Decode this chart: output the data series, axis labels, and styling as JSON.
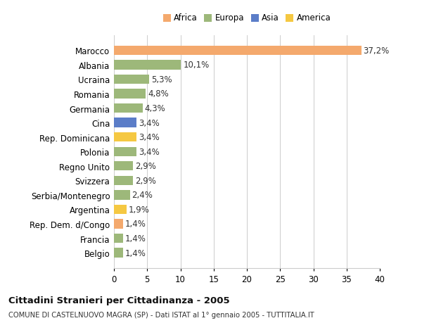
{
  "countries": [
    "Marocco",
    "Albania",
    "Ucraina",
    "Romania",
    "Germania",
    "Cina",
    "Rep. Dominicana",
    "Polonia",
    "Regno Unito",
    "Svizzera",
    "Serbia/Montenegro",
    "Argentina",
    "Rep. Dem. d/Congo",
    "Francia",
    "Belgio"
  ],
  "values": [
    37.2,
    10.1,
    5.3,
    4.8,
    4.3,
    3.4,
    3.4,
    3.4,
    2.9,
    2.9,
    2.4,
    1.9,
    1.4,
    1.4,
    1.4
  ],
  "labels": [
    "37,2%",
    "10,1%",
    "5,3%",
    "4,8%",
    "4,3%",
    "3,4%",
    "3,4%",
    "3,4%",
    "2,9%",
    "2,9%",
    "2,4%",
    "1,9%",
    "1,4%",
    "1,4%",
    "1,4%"
  ],
  "colors": [
    "#F4A96D",
    "#9DB87A",
    "#9DB87A",
    "#9DB87A",
    "#9DB87A",
    "#5B7DC8",
    "#F5C842",
    "#9DB87A",
    "#9DB87A",
    "#9DB87A",
    "#9DB87A",
    "#F5C842",
    "#F4A96D",
    "#9DB87A",
    "#9DB87A"
  ],
  "legend_labels": [
    "Africa",
    "Europa",
    "Asia",
    "America"
  ],
  "legend_colors": [
    "#F4A96D",
    "#9DB87A",
    "#5B7DC8",
    "#F5C842"
  ],
  "xlim": [
    0,
    40
  ],
  "xticks": [
    0,
    5,
    10,
    15,
    20,
    25,
    30,
    35,
    40
  ],
  "title_main": "Cittadini Stranieri per Cittadinanza - 2005",
  "title_sub": "COMUNE DI CASTELNUOVO MAGRA (SP) - Dati ISTAT al 1° gennaio 2005 - TUTTITALIA.IT",
  "background_color": "#ffffff",
  "grid_color": "#cccccc",
  "bar_height": 0.65,
  "label_fontsize": 8.5,
  "tick_fontsize": 8.5
}
